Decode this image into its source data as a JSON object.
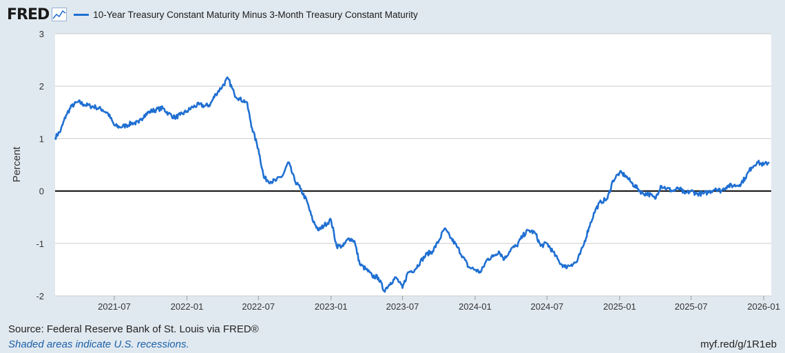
{
  "header": {
    "logo": "FRED",
    "logo_icon": "fred-chart-icon",
    "legend_label": "10-Year Treasury Constant Maturity Minus 3-Month Treasury Constant Maturity"
  },
  "footer": {
    "source": "Source: Federal Reserve Bank of St. Louis via FRED®",
    "recession_note": "Shaded areas indicate U.S. recessions.",
    "short_url": "myf.red/g/1R1eb"
  },
  "colors": {
    "series": "#1f6fd1",
    "plot_bg": "#ffffff",
    "page_bg": "#e1e9f0",
    "grid": "#cccccc",
    "zero_line": "#000000"
  },
  "chart_data": {
    "type": "line",
    "title": "10-Year Treasury Constant Maturity Minus 3-Month Treasury Constant Maturity",
    "ylabel": "Percent",
    "xlabel": "",
    "ylim": [
      -2,
      3
    ],
    "xlim": [
      "2021-02-01",
      "2026-01-20"
    ],
    "yticks": [
      3,
      2,
      1,
      0,
      -1,
      -2
    ],
    "xticks": [
      "2021-07",
      "2022-01",
      "2022-07",
      "2023-01",
      "2023-07",
      "2024-01",
      "2024-07",
      "2025-01",
      "2025-07",
      "2026-01"
    ],
    "zero_line": true,
    "grid": true,
    "series": [
      {
        "name": "10-Year Treasury Constant Maturity Minus 3-Month Treasury Constant Maturity",
        "x": [
          "2021-02-01",
          "2021-02-15",
          "2021-03-01",
          "2021-03-15",
          "2021-04-01",
          "2021-04-15",
          "2021-05-01",
          "2021-05-15",
          "2021-06-01",
          "2021-06-15",
          "2021-07-01",
          "2021-07-15",
          "2021-08-01",
          "2021-08-15",
          "2021-09-01",
          "2021-09-15",
          "2021-10-01",
          "2021-10-15",
          "2021-11-01",
          "2021-11-15",
          "2021-12-01",
          "2021-12-15",
          "2022-01-01",
          "2022-01-15",
          "2022-02-01",
          "2022-02-15",
          "2022-03-01",
          "2022-03-15",
          "2022-04-01",
          "2022-04-15",
          "2022-05-01",
          "2022-05-15",
          "2022-06-01",
          "2022-06-15",
          "2022-07-01",
          "2022-07-15",
          "2022-08-01",
          "2022-08-15",
          "2022-09-01",
          "2022-09-15",
          "2022-10-01",
          "2022-10-15",
          "2022-11-01",
          "2022-11-15",
          "2022-12-01",
          "2022-12-15",
          "2023-01-01",
          "2023-01-15",
          "2023-02-01",
          "2023-02-15",
          "2023-03-01",
          "2023-03-15",
          "2023-04-01",
          "2023-04-15",
          "2023-05-01",
          "2023-05-15",
          "2023-06-01",
          "2023-06-15",
          "2023-07-01",
          "2023-07-15",
          "2023-08-01",
          "2023-08-15",
          "2023-09-01",
          "2023-09-15",
          "2023-10-01",
          "2023-10-15",
          "2023-11-01",
          "2023-11-15",
          "2023-12-01",
          "2023-12-15",
          "2024-01-01",
          "2024-01-15",
          "2024-02-01",
          "2024-02-15",
          "2024-03-01",
          "2024-03-15",
          "2024-04-01",
          "2024-04-15",
          "2024-05-01",
          "2024-05-15",
          "2024-06-01",
          "2024-06-15",
          "2024-07-01",
          "2024-07-15",
          "2024-08-01",
          "2024-08-15",
          "2024-09-01",
          "2024-09-15",
          "2024-10-01",
          "2024-10-15",
          "2024-11-01",
          "2024-11-15",
          "2024-12-01",
          "2024-12-15",
          "2025-01-01",
          "2025-01-15",
          "2025-02-01",
          "2025-02-15",
          "2025-03-01",
          "2025-03-15",
          "2025-04-01",
          "2025-04-15",
          "2025-05-01",
          "2025-05-15",
          "2025-06-01",
          "2025-06-15",
          "2025-07-01",
          "2025-07-15",
          "2025-08-01",
          "2025-08-15",
          "2025-09-01",
          "2025-09-15",
          "2025-10-01",
          "2025-10-15",
          "2025-11-01",
          "2025-11-15",
          "2025-12-01",
          "2025-12-15",
          "2026-01-01",
          "2026-01-15"
        ],
        "values": [
          1.02,
          1.15,
          1.45,
          1.62,
          1.7,
          1.65,
          1.62,
          1.6,
          1.55,
          1.48,
          1.25,
          1.22,
          1.25,
          1.3,
          1.3,
          1.45,
          1.52,
          1.55,
          1.58,
          1.48,
          1.4,
          1.45,
          1.52,
          1.6,
          1.65,
          1.62,
          1.65,
          1.85,
          2.0,
          2.15,
          1.85,
          1.75,
          1.7,
          1.2,
          0.8,
          0.25,
          0.18,
          0.2,
          0.3,
          0.55,
          0.2,
          0.05,
          -0.2,
          -0.55,
          -0.75,
          -0.65,
          -0.55,
          -1.05,
          -1.05,
          -0.9,
          -0.95,
          -1.4,
          -1.5,
          -1.62,
          -1.65,
          -1.9,
          -1.75,
          -1.65,
          -1.85,
          -1.55,
          -1.5,
          -1.35,
          -1.2,
          -1.15,
          -0.95,
          -0.72,
          -0.9,
          -1.05,
          -1.25,
          -1.45,
          -1.5,
          -1.55,
          -1.3,
          -1.25,
          -1.15,
          -1.3,
          -1.1,
          -1.05,
          -0.85,
          -0.75,
          -0.8,
          -1.05,
          -1.0,
          -1.15,
          -1.35,
          -1.45,
          -1.4,
          -1.35,
          -1.05,
          -0.7,
          -0.35,
          -0.2,
          -0.15,
          0.2,
          0.35,
          0.3,
          0.15,
          0.05,
          -0.05,
          -0.05,
          -0.15,
          0.1,
          0.05,
          0.0,
          0.05,
          -0.05,
          0.0,
          -0.05,
          -0.05,
          -0.02,
          0.05,
          0.0,
          0.1,
          0.1,
          0.12,
          0.25,
          0.45,
          0.55,
          0.5,
          0.55
        ]
      }
    ]
  }
}
